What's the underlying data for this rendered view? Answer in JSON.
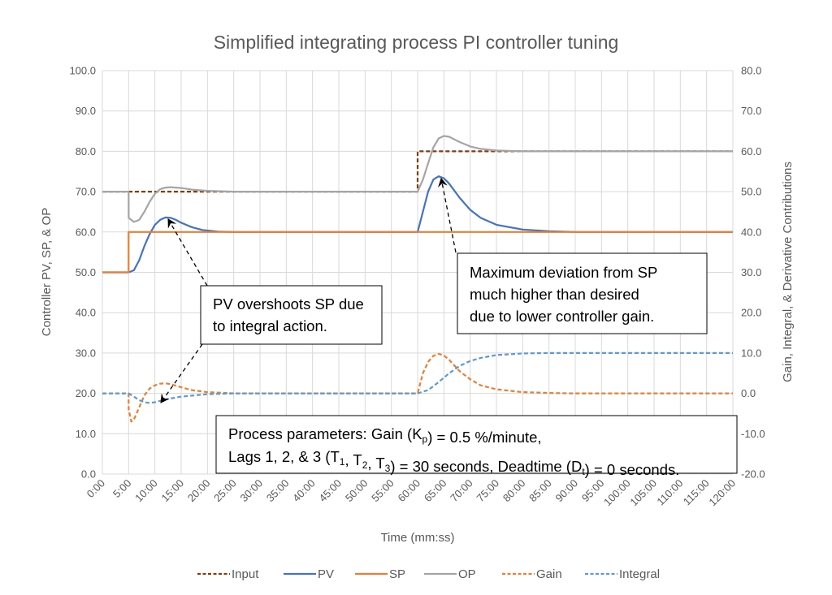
{
  "chart_data": {
    "type": "line",
    "title": "Simplified integrating process PI controller tuning",
    "xlabel": "Time (mm:ss)",
    "ylabel": "Controller PV, SP, & OP",
    "y2label": "Gain, Integral, & Derivative Contributions",
    "xlim": [
      0,
      120
    ],
    "ylim": [
      0,
      100
    ],
    "y2lim": [
      -20,
      80
    ],
    "grid": true,
    "legend_position": "bottom",
    "x_tick_labels": [
      "0:00",
      "5:00",
      "10:00",
      "15:00",
      "20:00",
      "25:00",
      "30:00",
      "35:00",
      "40:00",
      "45:00",
      "50:00",
      "55:00",
      "60:00",
      "65:00",
      "70:00",
      "75:00",
      "80:00",
      "85:00",
      "90:00",
      "95:00",
      "100:00",
      "105:00",
      "110:00",
      "115:00",
      "120:00"
    ],
    "y_tick_labels": [
      "0.0",
      "10.0",
      "20.0",
      "30.0",
      "40.0",
      "50.0",
      "60.0",
      "70.0",
      "80.0",
      "90.0",
      "100.0"
    ],
    "y2_tick_labels": [
      "-20.0",
      "-10.0",
      "0.0",
      "10.0",
      "20.0",
      "30.0",
      "40.0",
      "50.0",
      "60.0",
      "70.0",
      "80.0"
    ],
    "series": [
      {
        "name": "Input",
        "axis": "left",
        "color": "#843C0C",
        "dash": true,
        "x": [
          0,
          60,
          60,
          120
        ],
        "y": [
          70,
          70,
          80,
          80
        ]
      },
      {
        "name": "PV",
        "axis": "left",
        "color": "#4472C4",
        "dash": false,
        "x": [
          0,
          5,
          6,
          7,
          8,
          9,
          10,
          11,
          12,
          13,
          14,
          15,
          17,
          19,
          22,
          25,
          60,
          61,
          62,
          63,
          64,
          65,
          66,
          68,
          70,
          72,
          75,
          80,
          85,
          90,
          120
        ],
        "y": [
          50,
          50,
          50.5,
          53,
          56.5,
          59.5,
          61.8,
          63,
          63.6,
          63.5,
          63,
          62.3,
          61.2,
          60.5,
          60.1,
          60,
          60,
          65,
          70,
          73,
          73.8,
          73.3,
          72,
          68.5,
          65.5,
          63.5,
          61.8,
          60.6,
          60.2,
          60,
          60
        ]
      },
      {
        "name": "SP",
        "axis": "left",
        "color": "#ED7D31",
        "dash": false,
        "x": [
          0,
          5,
          5,
          120
        ],
        "y": [
          50,
          50,
          60,
          60
        ]
      },
      {
        "name": "OP",
        "axis": "left",
        "color": "#A5A5A5",
        "dash": false,
        "x": [
          0,
          5,
          5.01,
          6,
          7,
          8,
          9,
          10,
          11,
          12,
          13,
          15,
          17,
          20,
          25,
          60,
          61,
          62,
          63,
          64,
          65,
          66,
          68,
          70,
          72,
          75,
          80,
          120
        ],
        "y": [
          70,
          70,
          63.5,
          62.5,
          63,
          65,
          67.5,
          69.5,
          70.6,
          71,
          71.1,
          70.9,
          70.5,
          70.2,
          70,
          70,
          73,
          77,
          81,
          83.2,
          83.8,
          83.6,
          82.3,
          81.2,
          80.6,
          80.2,
          80,
          80
        ]
      },
      {
        "name": "Gain",
        "axis": "right",
        "color": "#ED7D31",
        "dash": true,
        "x": [
          0,
          5,
          5.01,
          5.5,
          6,
          7,
          8,
          9,
          10,
          11,
          12,
          13,
          15,
          17,
          20,
          25,
          60,
          61,
          62,
          63,
          64,
          65,
          66,
          68,
          70,
          72,
          75,
          80,
          85,
          90,
          120
        ],
        "y": [
          0,
          0,
          -4,
          -7,
          -6.5,
          -3.5,
          -0.5,
          1.2,
          2,
          2.4,
          2.5,
          2.3,
          1.5,
          0.8,
          0.3,
          0,
          0,
          5,
          7.8,
          9.3,
          9.8,
          9.4,
          8.3,
          5.5,
          3.5,
          2,
          1,
          0.3,
          0.1,
          0,
          0
        ]
      },
      {
        "name": "Integral",
        "axis": "right",
        "color": "#5B9BD5",
        "dash": true,
        "x": [
          0,
          5,
          6,
          7,
          8,
          9,
          10,
          12,
          15,
          20,
          25,
          60,
          62,
          64,
          66,
          68,
          70,
          72,
          75,
          80,
          85,
          120
        ],
        "y": [
          0,
          0,
          -0.8,
          -1.7,
          -2.2,
          -2.4,
          -2.2,
          -1.5,
          -0.8,
          -0.2,
          0,
          0,
          0.8,
          2.8,
          5,
          6.8,
          8,
          8.8,
          9.5,
          9.9,
          10,
          10
        ]
      }
    ],
    "annotations": {
      "overshoot": [
        "PV overshoots SP due",
        "to integral action."
      ],
      "deviation": [
        "Maximum deviation from SP",
        "much higher than desired",
        "due to lower controller gain."
      ],
      "params": [
        [
          {
            "t": "Process parameters:  Gain (K"
          },
          {
            "t": "p",
            "sub": true
          },
          {
            "t": ") = 0.5 %/minute,"
          }
        ],
        [
          {
            "t": "Lags 1, 2, & 3 (T"
          },
          {
            "t": "1",
            "sub": true
          },
          {
            "t": ", T"
          },
          {
            "t": "2",
            "sub": true
          },
          {
            "t": ", T"
          },
          {
            "t": "3",
            "sub": true
          },
          {
            "t": ") = 30 seconds, Deadtime (D"
          },
          {
            "t": "t",
            "sub": true
          },
          {
            "t": ") = 0 seconds."
          }
        ]
      ]
    }
  }
}
